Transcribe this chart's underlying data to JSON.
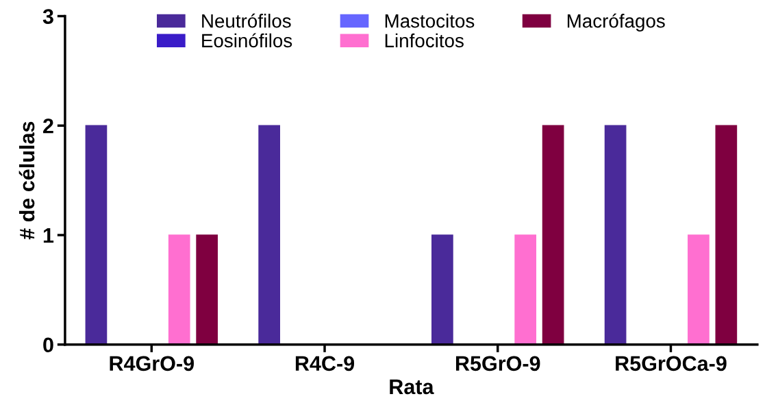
{
  "chart_data": {
    "type": "bar",
    "xlabel": "Rata",
    "ylabel": "# de células",
    "categories": [
      "R4GrO-9",
      "R4C-9",
      "R5GrO-9",
      "R5GrOCa-9"
    ],
    "series": [
      {
        "name": "Neutrófilos",
        "color": "#4a2a9a",
        "values": [
          2,
          2,
          1,
          2
        ]
      },
      {
        "name": "Eosinófilos",
        "color": "#3a1cc8",
        "values": [
          0,
          0,
          0,
          0
        ]
      },
      {
        "name": "Mastocitos",
        "color": "#6666ff",
        "values": [
          0,
          0,
          0,
          0
        ]
      },
      {
        "name": "Linfocitos",
        "color": "#ff6fd0",
        "values": [
          1,
          0,
          1,
          1
        ]
      },
      {
        "name": "Macrófagos",
        "color": "#7f0040",
        "values": [
          1,
          0,
          2,
          2
        ]
      }
    ],
    "ylim": [
      0,
      3
    ],
    "yticks": [
      0,
      1,
      2,
      3
    ],
    "grid": false,
    "legend": "top"
  }
}
